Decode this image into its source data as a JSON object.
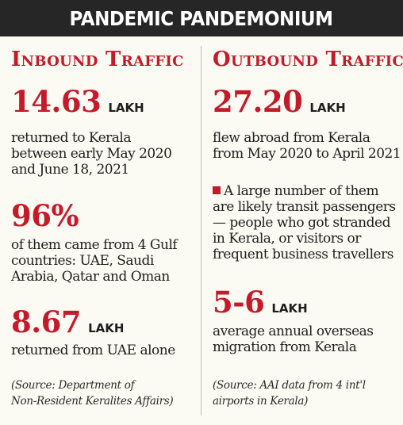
{
  "title": "PANDEMIC PANDEMONIUM",
  "inbound": {
    "heading": "Inbound Traffic",
    "stats": [
      {
        "value": "14.63",
        "unit": "LAKH",
        "lines": [
          "returned to Kerala",
          "between early May 2020",
          "and June 18, 2021"
        ]
      },
      {
        "value": "96%",
        "unit": "",
        "lines": [
          "of them came from 4 Gulf",
          "countries: UAE, Saudi",
          "Arabia, Qatar and Oman"
        ]
      },
      {
        "value": "8.67",
        "unit": "LAKH",
        "lines": [
          "returned from UAE alone"
        ]
      }
    ],
    "source_lines": [
      "(Source:  Department of",
      "Non-Resident Keralites Affairs)"
    ]
  },
  "outbound": {
    "heading": "Outbound Traffic",
    "stats": [
      {
        "value": "27.20",
        "unit": "LAKH",
        "lines": [
          "flew abroad from Kerala",
          "from May 2020 to April 2021"
        ]
      },
      {
        "value": "5-6",
        "unit": "LAKH",
        "lines": [
          "average annual overseas",
          "migration from Kerala"
        ]
      }
    ],
    "note_lines": [
      "A large number of them",
      "are likely transit passengers",
      "— people who got stranded",
      "in Kerala, or visitors or",
      "frequent business travellers"
    ],
    "source_lines": [
      "(Source: AAI data from 4 int'l",
      "airports in Kerala)"
    ]
  },
  "colors": {
    "accent": "#c41a2a",
    "title_bg": "#262626",
    "background": "#fbfaf3"
  }
}
